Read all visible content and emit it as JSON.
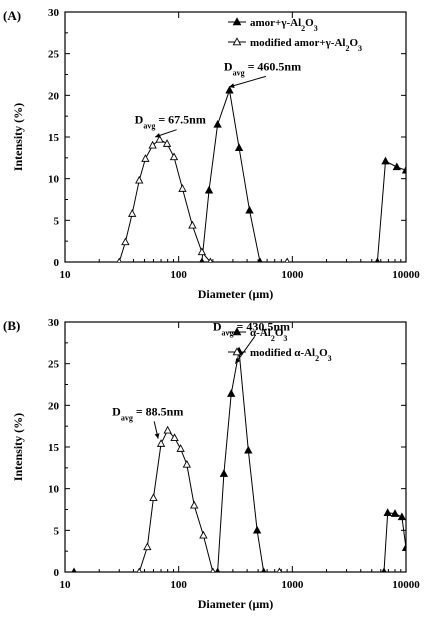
{
  "chart_data": [
    {
      "type": "line",
      "panel_label": "(A)",
      "xlabel": "Diameter (μm)",
      "ylabel": "Intensity (%)",
      "x_scale": "log",
      "xlim": [
        10,
        10000
      ],
      "ylim": [
        0,
        30
      ],
      "x_ticks": [
        10,
        100,
        1000,
        10000
      ],
      "x_tick_labels": [
        "10",
        "100",
        "1000",
        "10000"
      ],
      "y_ticks": [
        0,
        5,
        10,
        15,
        20,
        25,
        30
      ],
      "y_tick_labels": [
        "0",
        "5",
        "10",
        "15",
        "20",
        "25",
        "30"
      ],
      "legend_position": "top-right",
      "series": [
        {
          "name": "amor+γ-Al2O3",
          "marker": "filled-triangle",
          "segments": [
            [
              [
                160,
                0
              ],
              [
                185,
                8.6
              ],
              [
                220,
                16.5
              ],
              [
                280,
                20.6
              ],
              [
                340,
                13.7
              ],
              [
                420,
                6.2
              ],
              [
                520,
                0
              ]
            ],
            [
              [
                5600,
                0
              ],
              [
                6600,
                12.1
              ],
              [
                8300,
                11.4
              ],
              [
                10000,
                11.0
              ]
            ]
          ]
        },
        {
          "name": "modified amor+γ-Al2O3",
          "marker": "open-triangle",
          "segments": [
            [
              [
                30,
                0
              ],
              [
                34,
                2.4
              ],
              [
                39,
                5.8
              ],
              [
                45,
                9.8
              ],
              [
                51,
                12.4
              ],
              [
                59,
                14.0
              ],
              [
                68,
                14.7
              ],
              [
                79,
                14.2
              ],
              [
                91,
                12.6
              ],
              [
                108,
                8.8
              ],
              [
                132,
                4.4
              ],
              [
                160,
                1.2
              ],
              [
                190,
                0
              ],
              [
                900,
                0
              ]
            ]
          ]
        }
      ],
      "annotations": [
        {
          "text": "D",
          "sub": "avg",
          "rest": " = 460.5nm",
          "x": 250,
          "y": 23.0,
          "arrow_to": [
            278,
            21.0
          ]
        },
        {
          "text": "D",
          "sub": "avg",
          "rest": " = 67.5nm",
          "x": 41,
          "y": 16.6,
          "arrow_to": [
            62,
            15.0
          ]
        }
      ]
    },
    {
      "type": "line",
      "panel_label": "(B)",
      "xlabel": "Diameter (μm)",
      "ylabel": "Intensity (%)",
      "x_scale": "log",
      "xlim": [
        10,
        10000
      ],
      "ylim": [
        0,
        30
      ],
      "x_ticks": [
        10,
        100,
        1000,
        10000
      ],
      "x_tick_labels": [
        "10",
        "100",
        "1000",
        "10000"
      ],
      "y_ticks": [
        0,
        5,
        10,
        15,
        20,
        25,
        30
      ],
      "y_tick_labels": [
        "0",
        "5",
        "10",
        "15",
        "20",
        "25",
        "30"
      ],
      "legend_position": "top-right",
      "series": [
        {
          "name": "α-Al2O3",
          "marker": "filled-triangle",
          "segments": [
            [
              [
                12,
                0
              ]
            ],
            [
              [
                220,
                0
              ],
              [
                250,
                11.8
              ],
              [
                290,
                21.4
              ],
              [
                340,
                26.5
              ],
              [
                410,
                14.6
              ],
              [
                490,
                5.0
              ],
              [
                560,
                0
              ]
            ],
            [
              [
                6400,
                0
              ],
              [
                6900,
                7.1
              ],
              [
                8000,
                7.0
              ],
              [
                9200,
                6.6
              ],
              [
                10000,
                2.9
              ]
            ]
          ]
        },
        {
          "name": "modified α-Al2O3",
          "marker": "open-triangle",
          "segments": [
            [
              [
                45,
                0
              ],
              [
                53,
                3.0
              ],
              [
                60,
                8.9
              ],
              [
                70,
                15.4
              ],
              [
                80,
                17.0
              ],
              [
                92,
                16.1
              ],
              [
                104,
                14.8
              ],
              [
                118,
                12.9
              ],
              [
                137,
                8.0
              ],
              [
                165,
                4.4
              ],
              [
                200,
                0
              ],
              [
                770,
                0
              ]
            ]
          ]
        }
      ],
      "annotations": [
        {
          "text": "D",
          "sub": "avg",
          "rest": " = 430.5nm",
          "x": 200,
          "y": 29.0,
          "arrow_to": [
            315,
            25.0
          ]
        },
        {
          "text": "D",
          "sub": "avg",
          "rest": " = 88.5nm",
          "x": 26,
          "y": 18.8,
          "arrow_to": [
            66,
            16.0
          ]
        }
      ]
    }
  ]
}
